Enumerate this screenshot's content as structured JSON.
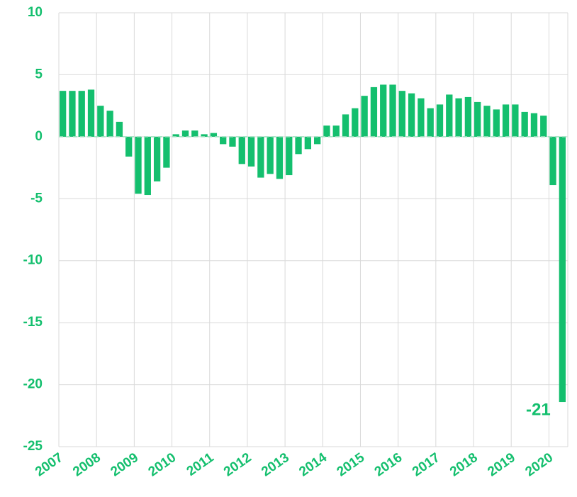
{
  "chart_data": {
    "type": "bar",
    "categories": [
      "2007",
      null,
      null,
      null,
      "2008",
      null,
      null,
      null,
      "2009",
      null,
      null,
      null,
      "2010",
      null,
      null,
      null,
      "2011",
      null,
      null,
      null,
      "2012",
      null,
      null,
      null,
      "2013",
      null,
      null,
      null,
      "2014",
      null,
      null,
      null,
      "2015",
      null,
      null,
      null,
      "2016",
      null,
      null,
      null,
      "2017",
      null,
      null,
      null,
      "2018",
      null,
      null,
      null,
      "2019",
      null,
      null,
      null,
      "2020",
      null
    ],
    "values": [
      3.7,
      3.7,
      3.7,
      3.8,
      2.5,
      2.1,
      1.2,
      -1.6,
      -4.6,
      -4.7,
      -3.6,
      -2.5,
      0.2,
      0.5,
      0.5,
      0.2,
      0.3,
      -0.6,
      -0.8,
      -2.2,
      -2.4,
      -3.3,
      -3.0,
      -3.4,
      -3.1,
      -1.4,
      -1.0,
      -0.6,
      0.9,
      0.9,
      1.8,
      2.3,
      3.3,
      4.0,
      4.2,
      4.2,
      3.7,
      3.5,
      3.1,
      2.3,
      2.6,
      3.4,
      3.1,
      3.2,
      2.8,
      2.5,
      2.2,
      2.6,
      2.6,
      2.0,
      1.9,
      1.7,
      -3.9,
      -21.4
    ],
    "value_labels": [
      null,
      null,
      null,
      null,
      null,
      null,
      null,
      null,
      null,
      null,
      null,
      null,
      null,
      null,
      null,
      null,
      null,
      null,
      null,
      null,
      null,
      null,
      null,
      null,
      null,
      null,
      null,
      null,
      null,
      null,
      null,
      null,
      null,
      null,
      null,
      null,
      null,
      null,
      null,
      null,
      null,
      null,
      null,
      null,
      null,
      null,
      null,
      null,
      null,
      null,
      null,
      null,
      null,
      "-21"
    ],
    "color": "#14bf6e",
    "ylim": [
      -25,
      10
    ],
    "yticks": [
      -25,
      -20,
      -15,
      -10,
      -5,
      0,
      5,
      10
    ],
    "grid": true
  }
}
